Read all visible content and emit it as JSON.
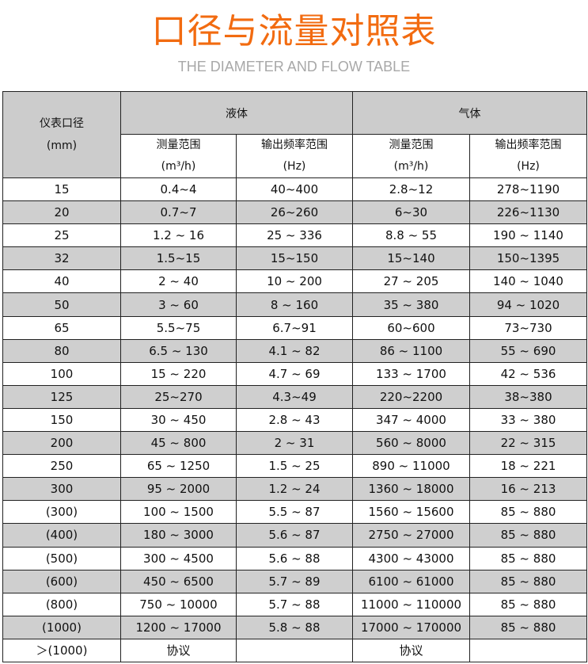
{
  "title": "口径与流量对照表",
  "subtitle": "THE DIAMETER AND FLOW TABLE",
  "colors": {
    "title": "#f26b10",
    "subtitle": "#a8a8a8",
    "row_shade": "#cfcfcf",
    "header_bg": "#cccccc"
  },
  "header": {
    "diameter": "仪表口径",
    "diameter_unit": "(mm)",
    "liquid": "液体",
    "gas": "气体",
    "measure_range": "测量范围",
    "measure_unit": "(m³/h)",
    "freq_range": "输出频率范围",
    "freq_unit": "(Hz)"
  },
  "rows": [
    [
      "15",
      "0.4~4",
      "40~400",
      "2.8~12",
      "278~1190"
    ],
    [
      "20",
      "0.7~7",
      "26~260",
      "6~30",
      "226~1130"
    ],
    [
      "25",
      "1.2 ~ 16",
      "25 ~ 336",
      "8.8 ~ 55",
      "190 ~ 1140"
    ],
    [
      "32",
      "1.5~15",
      "15~150",
      "15~140",
      "150~1395"
    ],
    [
      "40",
      "2 ~ 40",
      "10 ~ 200",
      "27 ~ 205",
      "140 ~ 1040"
    ],
    [
      "50",
      "3 ~ 60",
      "8 ~ 160",
      "35 ~ 380",
      "94 ~ 1020"
    ],
    [
      "65",
      "5.5~75",
      "6.7~91",
      "60~600",
      "73~730"
    ],
    [
      "80",
      "6.5 ~ 130",
      "4.1 ~ 82",
      "86 ~ 1100",
      "55 ~ 690"
    ],
    [
      "100",
      "15 ~ 220",
      "4.7 ~ 69",
      "133 ~ 1700",
      "42 ~ 536"
    ],
    [
      "125",
      "25~270",
      "4.3~49",
      "220~2200",
      "38~380"
    ],
    [
      "150",
      "30 ~ 450",
      "2.8 ~ 43",
      "347 ~ 4000",
      "33 ~ 380"
    ],
    [
      "200",
      "45 ~ 800",
      "2 ~ 31",
      "560 ~ 8000",
      "22 ~ 315"
    ],
    [
      "250",
      "65 ~ 1250",
      "1.5 ~ 25",
      "890 ~ 11000",
      "18 ~ 221"
    ],
    [
      "300",
      "95 ~ 2000",
      "1.2 ~ 24",
      "1360 ~ 18000",
      "16 ~ 213"
    ],
    [
      "(300)",
      "100 ~ 1500",
      "5.5 ~ 87",
      "1560 ~ 15600",
      "85 ~ 880"
    ],
    [
      "(400)",
      "180 ~ 3000",
      "5.6 ~ 87",
      "2750 ~ 27000",
      "85 ~ 880"
    ],
    [
      "(500)",
      "300 ~ 4500",
      "5.6 ~ 88",
      "4300 ~ 43000",
      "85 ~ 880"
    ],
    [
      "(600)",
      "450 ~ 6500",
      "5.7 ~ 89",
      "6100 ~ 61000",
      "85 ~ 880"
    ],
    [
      "(800)",
      "750 ~ 10000",
      "5.7 ~ 88",
      "11000 ~ 110000",
      "85 ~ 880"
    ],
    [
      "(1000)",
      "1200 ~ 17000",
      "5.8 ~ 88",
      "17000 ~ 170000",
      "85 ~ 880"
    ],
    [
      "＞(1000)",
      "协议",
      "",
      "协议",
      ""
    ]
  ]
}
